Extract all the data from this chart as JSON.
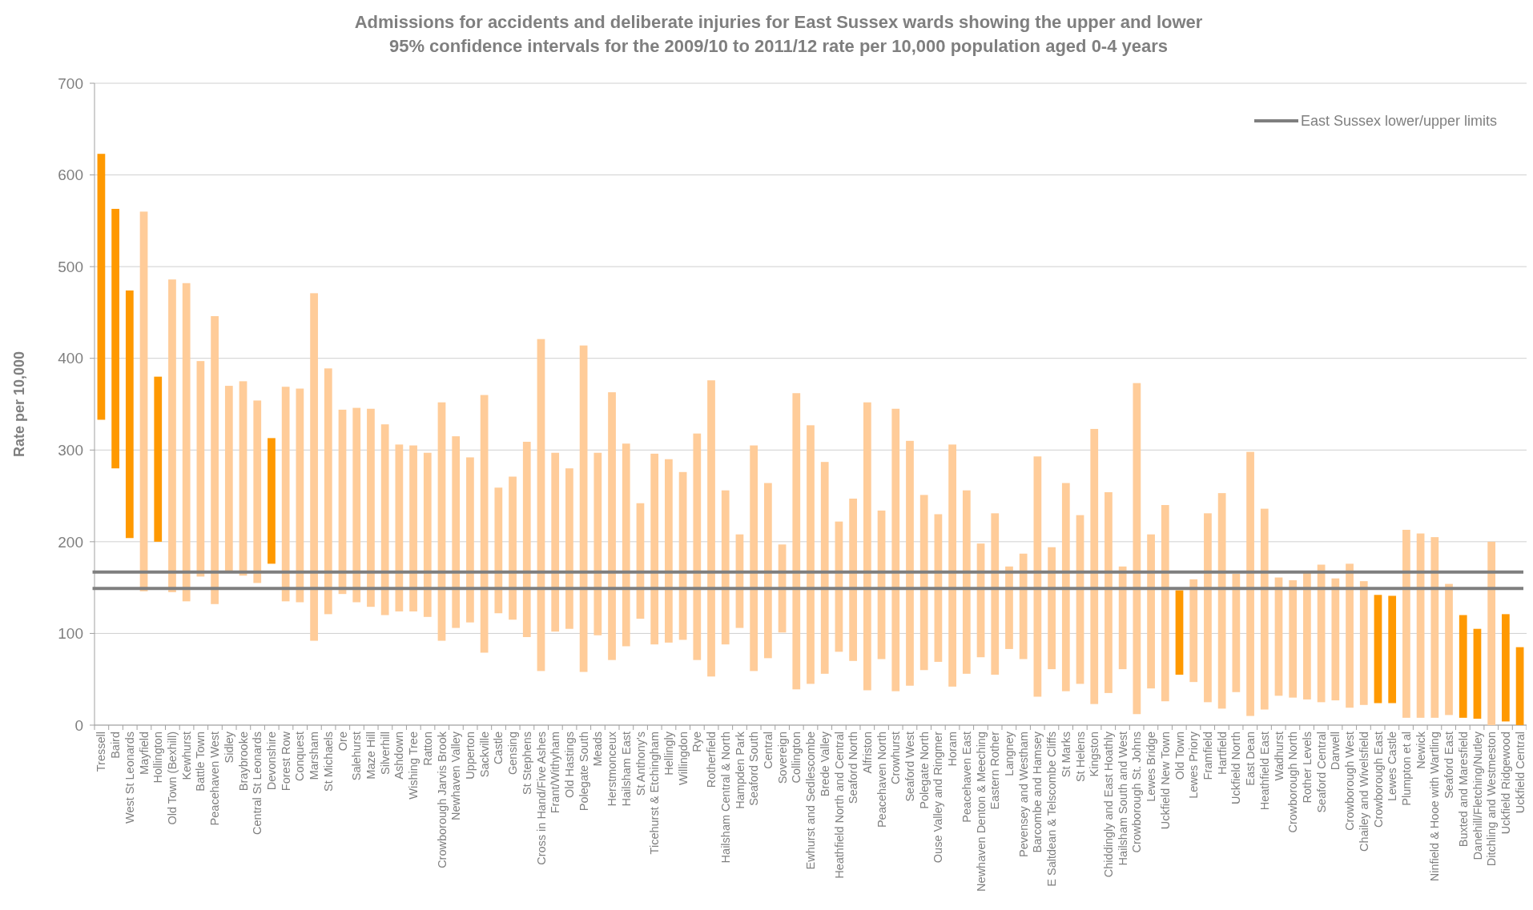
{
  "chart_data": {
    "type": "bar",
    "title": "Admissions for accidents and deliberate injuries for East Sussex wards showing the upper and lower 95% confidence intervals for the 2009/10 to 2011/12 rate per 10,000 population aged 0-4 years",
    "ylabel": "Rate per 10,000",
    "categories": [
      "Tressell",
      "Baird",
      "West St Leonards",
      "Mayfield",
      "Hollington",
      "Old Town (Bexhill)",
      "Kewhurst",
      "Battle Town",
      "Peacehaven West",
      "Sidley",
      "Braybrooke",
      "Central St Leonards",
      "Devonshire",
      "Forest Row",
      "Conquest",
      "Marsham",
      "St Michaels",
      "Ore",
      "Salehurst",
      "Maze Hill",
      "Silverhill",
      "Ashdown",
      "Wishing Tree",
      "Ratton",
      "Crowborough Jarvis Brook",
      "Newhaven Valley",
      "Upperton",
      "Sackville",
      "Castle",
      "Gensing",
      "St Stephens",
      "Cross in Hand/Five Ashes",
      "Frant/Withyham",
      "Old Hastings",
      "Polegate South",
      "Meads",
      "Herstmonceux",
      "Hailsham East",
      "St Anthony's",
      "Ticehurst & Etchingham",
      "Hellingly",
      "Willingdon",
      "Rye",
      "Rotherfield",
      "Hailsham Central & North",
      "Hampden Park",
      "Seaford South",
      "Central",
      "Sovereign",
      "Collington",
      "Ewhurst and Sedlescombe",
      "Brede Valley",
      "Heathfield North and Central",
      "Seaford North",
      "Alfriston",
      "Peacehaven North",
      "Crowhurst",
      "Seaford West",
      "Polegate North",
      "Ouse Valley and Ringmer",
      "Horam",
      "Peacehaven East",
      "Newhaven Denton & Meeching",
      "Eastern Rother",
      "Langney",
      "Pevensey and Westham",
      "Barcombe and Hamsey",
      "E Saltdean & Telscombe Cliffs",
      "St Marks",
      "St Helens",
      "Kingston",
      "Chiddingly and East Hoathly",
      "Hailsham South and West",
      "Crowborough St. Johns",
      "Lewes Bridge",
      "Uckfield New Town",
      "Old Town",
      "Lewes Priory",
      "Framfield",
      "Hartfield",
      "Uckfield North",
      "East Dean",
      "Heathfield East",
      "Wadhurst",
      "Crowborough North",
      "Rother Levels",
      "Seaford Central",
      "Darwell",
      "Crowborough West",
      "Chailey and Wivelsfield",
      "Crowborough East",
      "Lewes Castle",
      "Plumpton et al",
      "Newick",
      "Ninfield & Hooe with Wartling",
      "Seaford East",
      "Buxted and Maresfield",
      "Danehill/Fletching/Nutley",
      "Ditchling and Westmeston",
      "Uckfield Ridgewood",
      "Uckfield Central"
    ],
    "base": [
      333,
      280,
      204,
      146,
      200,
      145,
      135,
      162,
      132,
      168,
      163,
      155,
      176,
      135,
      134,
      92,
      121,
      143,
      134,
      129,
      120,
      124,
      124,
      118,
      92,
      106,
      112,
      79,
      122,
      115,
      96,
      59,
      102,
      105,
      58,
      98,
      71,
      86,
      116,
      88,
      90,
      93,
      71,
      53,
      88,
      106,
      59,
      73,
      101,
      39,
      45,
      56,
      80,
      70,
      38,
      72,
      37,
      43,
      60,
      69,
      42,
      56,
      74,
      55,
      83,
      72,
      31,
      61,
      37,
      45,
      23,
      35,
      61,
      12,
      40,
      26,
      55,
      47,
      25,
      18,
      36,
      10,
      17,
      32,
      30,
      28,
      25,
      27,
      19,
      22,
      24,
      24,
      8,
      8,
      8,
      11,
      8,
      7,
      0,
      4,
      0
    ],
    "values": [
      290,
      283,
      270,
      414,
      180,
      341,
      347,
      235,
      314,
      202,
      212,
      199,
      137,
      234,
      233,
      379,
      268,
      201,
      212,
      216,
      208,
      182,
      181,
      179,
      260,
      209,
      180,
      281,
      137,
      156,
      213,
      362,
      195,
      175,
      356,
      199,
      292,
      221,
      126,
      208,
      200,
      183,
      247,
      323,
      168,
      102,
      246,
      191,
      96,
      323,
      282,
      231,
      142,
      177,
      314,
      162,
      308,
      267,
      191,
      161,
      264,
      200,
      124,
      176,
      90,
      115,
      262,
      133,
      227,
      184,
      300,
      219,
      112,
      361,
      168,
      214,
      92,
      112,
      206,
      235,
      129,
      288,
      219,
      129,
      128,
      138,
      150,
      133,
      157,
      135,
      118,
      117,
      205,
      201,
      197,
      143,
      112,
      98,
      200,
      117,
      85
    ],
    "colors": [
      "#ff9900",
      "#ff9900",
      "#ff9900",
      "#ffcc99",
      "#ff9900",
      "#ffcc99",
      "#ffcc99",
      "#ffcc99",
      "#ffcc99",
      "#ffcc99",
      "#ffcc99",
      "#ffcc99",
      "#ff9900",
      "#ffcc99",
      "#ffcc99",
      "#ffcc99",
      "#ffcc99",
      "#ffcc99",
      "#ffcc99",
      "#ffcc99",
      "#ffcc99",
      "#ffcc99",
      "#ffcc99",
      "#ffcc99",
      "#ffcc99",
      "#ffcc99",
      "#ffcc99",
      "#ffcc99",
      "#ffcc99",
      "#ffcc99",
      "#ffcc99",
      "#ffcc99",
      "#ffcc99",
      "#ffcc99",
      "#ffcc99",
      "#ffcc99",
      "#ffcc99",
      "#ffcc99",
      "#ffcc99",
      "#ffcc99",
      "#ffcc99",
      "#ffcc99",
      "#ffcc99",
      "#ffcc99",
      "#ffcc99",
      "#ffcc99",
      "#ffcc99",
      "#ffcc99",
      "#ffcc99",
      "#ffcc99",
      "#ffcc99",
      "#ffcc99",
      "#ffcc99",
      "#ffcc99",
      "#ffcc99",
      "#ffcc99",
      "#ffcc99",
      "#ffcc99",
      "#ffcc99",
      "#ffcc99",
      "#ffcc99",
      "#ffcc99",
      "#ffcc99",
      "#ffcc99",
      "#ffcc99",
      "#ffcc99",
      "#ffcc99",
      "#ffcc99",
      "#ffcc99",
      "#ffcc99",
      "#ffcc99",
      "#ffcc99",
      "#ffcc99",
      "#ffcc99",
      "#ffcc99",
      "#ffcc99",
      "#ff9900",
      "#ffcc99",
      "#ffcc99",
      "#ffcc99",
      "#ffcc99",
      "#ffcc99",
      "#ffcc99",
      "#ffcc99",
      "#ffcc99",
      "#ffcc99",
      "#ffcc99",
      "#ffcc99",
      "#ffcc99",
      "#ffcc99",
      "#ff9900",
      "#ff9900",
      "#ffcc99",
      "#ffcc99",
      "#ffcc99",
      "#ffcc99",
      "#ff9900",
      "#ff9900",
      "#ffcc99",
      "#ff9900",
      "#ff9900"
    ],
    "ylim": [
      0,
      700
    ],
    "yticks": [
      0,
      100,
      200,
      300,
      400,
      500,
      600,
      700
    ],
    "grid": "y",
    "legend": "top right",
    "ref_lines": [
      {
        "axis": "y",
        "value": 167,
        "label": "East Sussex lower/upper limits",
        "color": "#7f7f7f"
      },
      {
        "axis": "y",
        "value": 149,
        "color": "#7f7f7f"
      }
    ]
  }
}
